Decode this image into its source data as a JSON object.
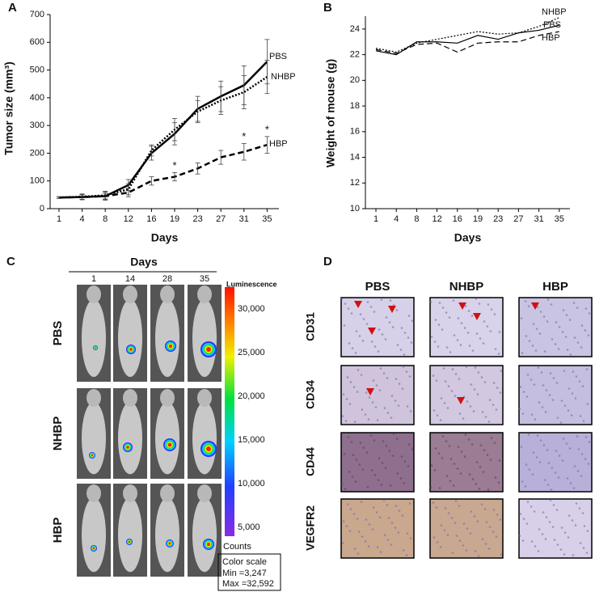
{
  "chart_data": [
    {
      "type": "line",
      "label": "A",
      "ylabel": "Tumor size (mm³)",
      "xlabel": "Days",
      "categories": [
        "1",
        "4",
        "8",
        "12",
        "16",
        "19",
        "23",
        "27",
        "31",
        "35"
      ],
      "ylim": [
        0,
        700
      ],
      "yticks": [
        0,
        100,
        200,
        300,
        400,
        500,
        600,
        700
      ],
      "series": [
        {
          "name": "PBS",
          "color": "#000000",
          "line_style": "solid",
          "values": [
            40,
            42,
            45,
            85,
            200,
            270,
            360,
            405,
            445,
            530
          ],
          "errors": [
            3,
            10,
            15,
            20,
            25,
            40,
            45,
            55,
            70,
            80
          ]
        },
        {
          "name": "NHBP",
          "color": "#000000",
          "line_style": "dotted",
          "values": [
            40,
            43,
            48,
            70,
            210,
            285,
            350,
            390,
            420,
            475
          ],
          "errors": [
            3,
            10,
            15,
            20,
            20,
            40,
            40,
            50,
            60,
            60
          ]
        },
        {
          "name": "HBP",
          "color": "#000000",
          "line_style": "dashed",
          "values": [
            40,
            42,
            45,
            58,
            100,
            115,
            145,
            185,
            205,
            230
          ],
          "errors": [
            3,
            8,
            10,
            15,
            15,
            15,
            20,
            25,
            30,
            30
          ]
        }
      ],
      "annotations": [
        {
          "text": "*",
          "series": "HBP",
          "category": "19"
        },
        {
          "text": "*",
          "series": "HBP",
          "category": "31"
        },
        {
          "text": "*",
          "series": "HBP",
          "category": "35"
        }
      ]
    },
    {
      "type": "line",
      "label": "B",
      "ylabel": "Weight of mouse (g)",
      "xlabel": "Days",
      "categories": [
        "1",
        "4",
        "8",
        "12",
        "16",
        "19",
        "23",
        "27",
        "31",
        "35"
      ],
      "ylim": [
        10,
        25
      ],
      "yticks": [
        10,
        12,
        14,
        16,
        18,
        20,
        22,
        24
      ],
      "series": [
        {
          "name": "NHBP",
          "color": "#000000",
          "line_style": "dotted",
          "values": [
            22.5,
            22.2,
            22.9,
            23.2,
            23.5,
            23.8,
            23.6,
            23.7,
            24.2,
            24.9
          ]
        },
        {
          "name": "PBS",
          "color": "#000000",
          "line_style": "solid",
          "values": [
            22.3,
            22.0,
            23.0,
            23.0,
            22.9,
            23.5,
            23.2,
            23.7,
            23.9,
            24.3
          ]
        },
        {
          "name": "HBP",
          "color": "#000000",
          "line_style": "dashed",
          "values": [
            22.4,
            22.1,
            22.8,
            22.9,
            22.2,
            22.9,
            23.0,
            23.0,
            23.5,
            23.8
          ]
        }
      ]
    }
  ],
  "panel_c": {
    "label": "C",
    "title": "Days",
    "columns": [
      "1",
      "14",
      "28",
      "35"
    ],
    "rows": [
      "PBS",
      "NHBP",
      "HBP"
    ],
    "colorbar": {
      "title": "Luminescence",
      "ticks": [
        "30,000",
        "25,000",
        "20,000",
        "15,000",
        "10,000",
        "5,000"
      ],
      "unit": "Counts"
    },
    "color_scale": {
      "title": "Color scale",
      "min": "Min =3,247",
      "max": "Max =32,592"
    }
  },
  "panel_d": {
    "label": "D",
    "columns": [
      "PBS",
      "NHBP",
      "HBP"
    ],
    "rows": [
      "CD31",
      "CD34",
      "CD44",
      "VEGFR2"
    ]
  }
}
